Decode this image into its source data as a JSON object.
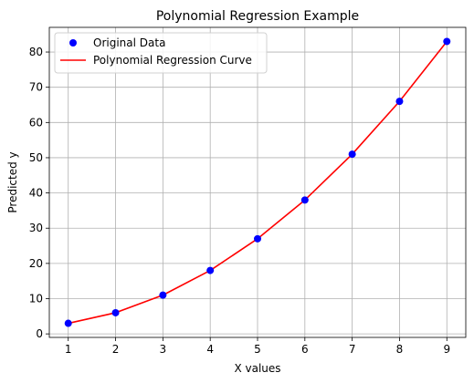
{
  "chart_data": {
    "type": "scatter",
    "title": "Polynomial Regression Example",
    "xlabel": "X values",
    "ylabel": "Predicted y",
    "xlim": [
      0.6,
      9.4
    ],
    "ylim": [
      -1,
      87
    ],
    "x_ticks": [
      "1",
      "2",
      "3",
      "4",
      "5",
      "6",
      "7",
      "8",
      "9"
    ],
    "y_ticks": [
      "0",
      "10",
      "20",
      "30",
      "40",
      "50",
      "60",
      "70",
      "80"
    ],
    "grid": true,
    "legend_position": "top-left",
    "series": [
      {
        "name": "Original Data",
        "kind": "scatter",
        "color": "#0000ff",
        "x": [
          1,
          2,
          3,
          4,
          5,
          6,
          7,
          8,
          9
        ],
        "y": [
          3,
          6,
          11,
          18,
          27,
          38,
          51,
          66,
          83
        ]
      },
      {
        "name": "Polynomial Regression Curve",
        "kind": "line",
        "color": "#ff0000",
        "x": [
          1,
          2,
          3,
          4,
          5,
          6,
          7,
          8,
          9
        ],
        "y": [
          3,
          6,
          11,
          18,
          27,
          38,
          51,
          66,
          83
        ]
      }
    ]
  }
}
